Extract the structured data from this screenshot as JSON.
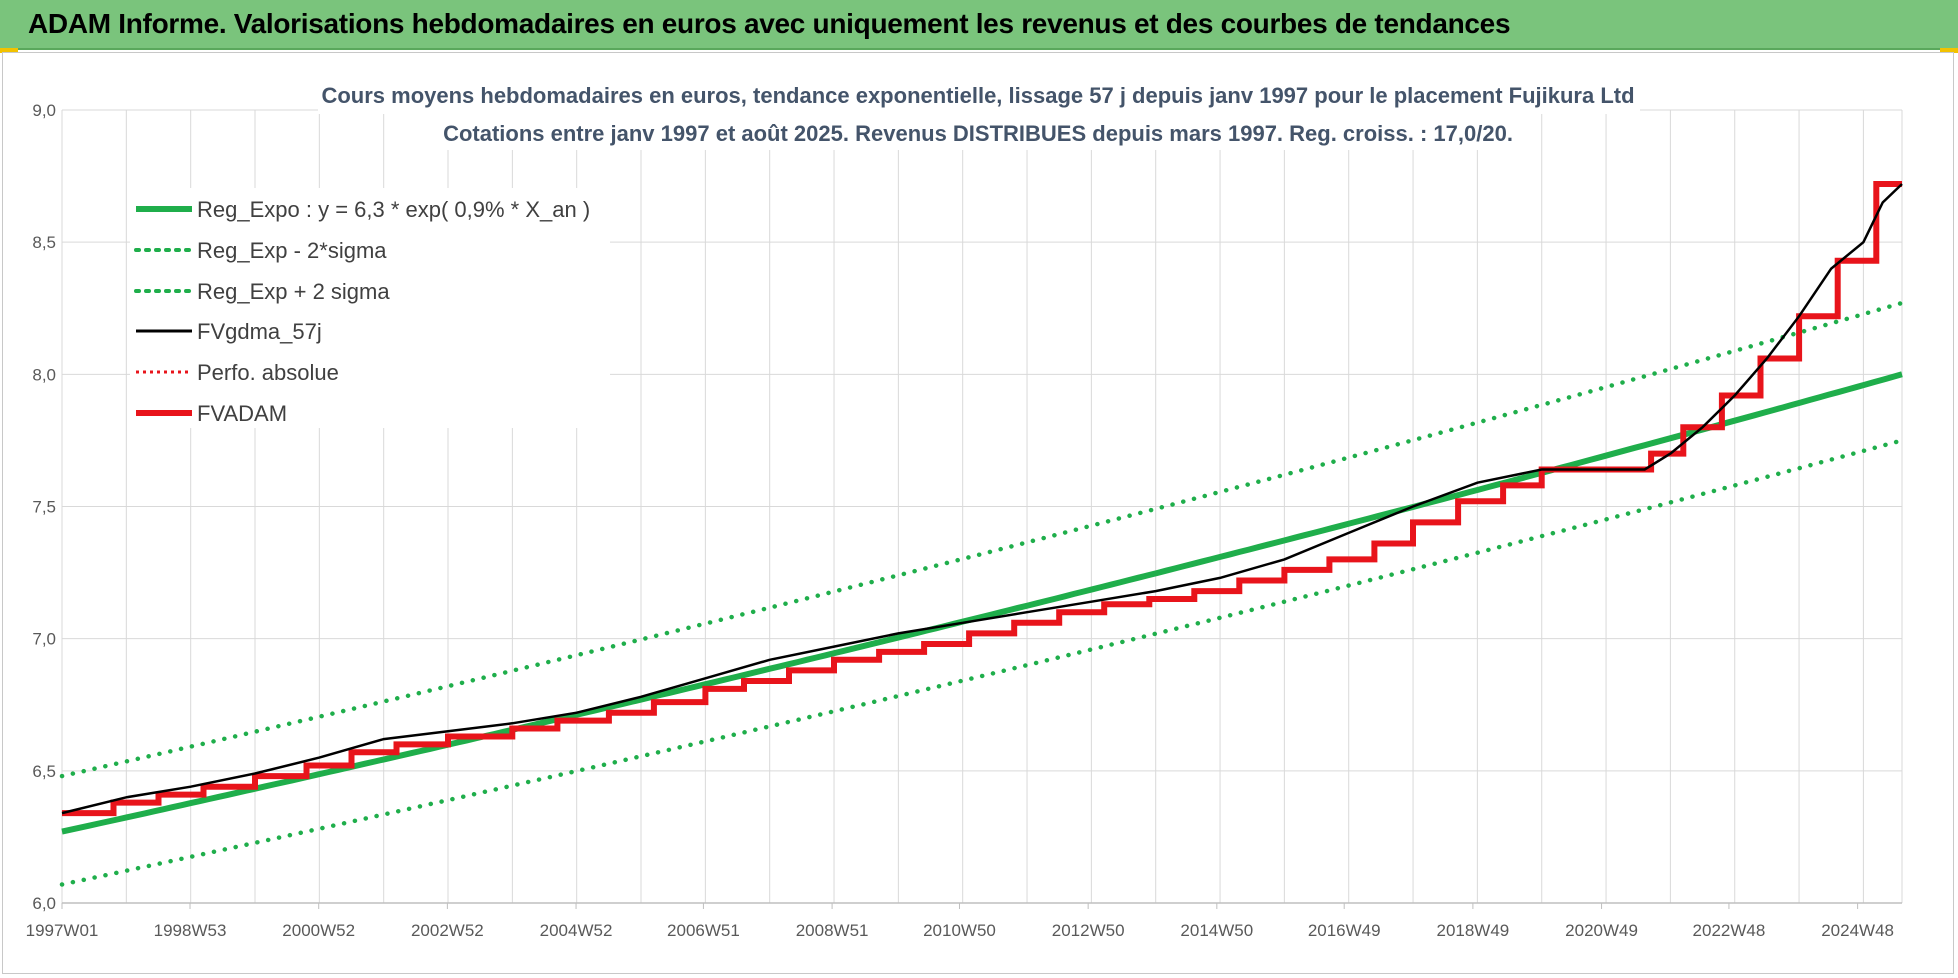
{
  "banner": {
    "title": "ADAM Informe. Valorisations hebdomadaires en euros avec uniquement les revenus et des courbes de tendances"
  },
  "colors": {
    "banner_bg": "#7ac47c",
    "reg_green": "#1fae4b",
    "fv_black": "#000000",
    "fvadam_red": "#e8141b",
    "title_slate": "#44546a"
  },
  "chart_data": {
    "type": "line",
    "title_line1": "Cours moyens hebdomadaires en euros, tendance exponentielle, lissage 57 j depuis janv 1997  pour le placement Fujikura Ltd",
    "title_line2": "Cotations entre janv 1997 et août 2025.  Revenus DISTRIBUES depuis mars 1997. Reg. croiss. : 17,0/20.",
    "xlabel": "",
    "ylabel": "",
    "x_range": [
      1997.0,
      2025.6
    ],
    "ylim": [
      6.0,
      9.0
    ],
    "y_ticks": [
      6.0,
      6.5,
      7.0,
      7.5,
      8.0,
      8.5,
      9.0
    ],
    "y_tick_labels": [
      "6,0",
      "6,5",
      "7,0",
      "7,5",
      "8,0",
      "8,5",
      "9,0"
    ],
    "x_tick_labels": [
      {
        "label": "1997W01",
        "x": 1997.0
      },
      {
        "label": "1998W53",
        "x": 1998.99
      },
      {
        "label": "2000W52",
        "x": 2000.99
      },
      {
        "label": "2002W52",
        "x": 2002.99
      },
      {
        "label": "2004W52",
        "x": 2004.99
      },
      {
        "label": "2006W51",
        "x": 2006.97
      },
      {
        "label": "2008W51",
        "x": 2008.97
      },
      {
        "label": "2010W50",
        "x": 2010.95
      },
      {
        "label": "2012W50",
        "x": 2012.95
      },
      {
        "label": "2014W50",
        "x": 2014.95
      },
      {
        "label": "2016W49",
        "x": 2016.93
      },
      {
        "label": "2018W49",
        "x": 2018.93
      },
      {
        "label": "2020W49",
        "x": 2020.93
      },
      {
        "label": "2022W48",
        "x": 2022.91
      },
      {
        "label": "2024W48",
        "x": 2024.91
      }
    ],
    "grid": true,
    "legend_position": "top-left",
    "series": [
      {
        "name": "Reg_Expo : y = 6,3 * exp( 0,9% *  X_an )",
        "style": "solid-green",
        "x": [
          1997.0,
          2025.6
        ],
        "y": [
          6.27,
          8.0
        ],
        "curve": "exponential"
      },
      {
        "name": "Reg_Exp - 2*sigma",
        "style": "dotted-green",
        "x": [
          1997.0,
          2025.6
        ],
        "y": [
          6.07,
          7.75
        ],
        "curve": "exponential"
      },
      {
        "name": "Reg_Exp + 2 sigma",
        "style": "dotted-green",
        "x": [
          1997.0,
          2025.6
        ],
        "y": [
          6.48,
          8.27
        ],
        "curve": "exponential"
      },
      {
        "name": "FVgdma_57j",
        "style": "solid-black-thin",
        "x": [
          1997.0,
          1998.0,
          1999.0,
          2000.0,
          2001.0,
          2002.0,
          2003.0,
          2004.0,
          2005.0,
          2006.0,
          2007.0,
          2008.0,
          2009.0,
          2010.0,
          2011.0,
          2012.0,
          2013.0,
          2014.0,
          2015.0,
          2016.0,
          2017.0,
          2018.0,
          2019.0,
          2020.0,
          2021.0,
          2021.6,
          2022.0,
          2022.5,
          2023.0,
          2023.5,
          2024.0,
          2024.5,
          2025.0,
          2025.3,
          2025.6
        ],
        "y": [
          6.34,
          6.4,
          6.44,
          6.49,
          6.55,
          6.62,
          6.65,
          6.68,
          6.72,
          6.78,
          6.85,
          6.92,
          6.97,
          7.02,
          7.06,
          7.1,
          7.14,
          7.18,
          7.23,
          7.3,
          7.4,
          7.5,
          7.59,
          7.64,
          7.64,
          7.64,
          7.7,
          7.8,
          7.92,
          8.06,
          8.22,
          8.4,
          8.5,
          8.65,
          8.72
        ]
      },
      {
        "name": "Perfo. absolue",
        "style": "dotted-red",
        "x": [],
        "y": []
      },
      {
        "name": "FVADAM",
        "style": "step-red-thick",
        "x": [
          1997.0,
          1997.8,
          1998.5,
          1999.2,
          2000.0,
          2000.8,
          2001.5,
          2002.2,
          2003.0,
          2004.0,
          2004.7,
          2005.5,
          2006.2,
          2007.0,
          2007.6,
          2008.3,
          2009.0,
          2009.7,
          2010.4,
          2011.1,
          2011.8,
          2012.5,
          2013.2,
          2013.9,
          2014.6,
          2015.3,
          2016.0,
          2016.7,
          2017.4,
          2018.0,
          2018.7,
          2019.4,
          2020.0,
          2021.7,
          2022.2,
          2022.8,
          2023.4,
          2024.0,
          2024.6,
          2025.2
        ],
        "y": [
          6.34,
          6.38,
          6.41,
          6.44,
          6.48,
          6.52,
          6.57,
          6.6,
          6.63,
          6.66,
          6.69,
          6.72,
          6.76,
          6.81,
          6.84,
          6.88,
          6.92,
          6.95,
          6.98,
          7.02,
          7.06,
          7.1,
          7.13,
          7.15,
          7.18,
          7.22,
          7.26,
          7.3,
          7.36,
          7.44,
          7.52,
          7.58,
          7.64,
          7.7,
          7.8,
          7.92,
          8.06,
          8.22,
          8.43,
          8.72
        ],
        "end_x": 2025.6
      }
    ]
  }
}
